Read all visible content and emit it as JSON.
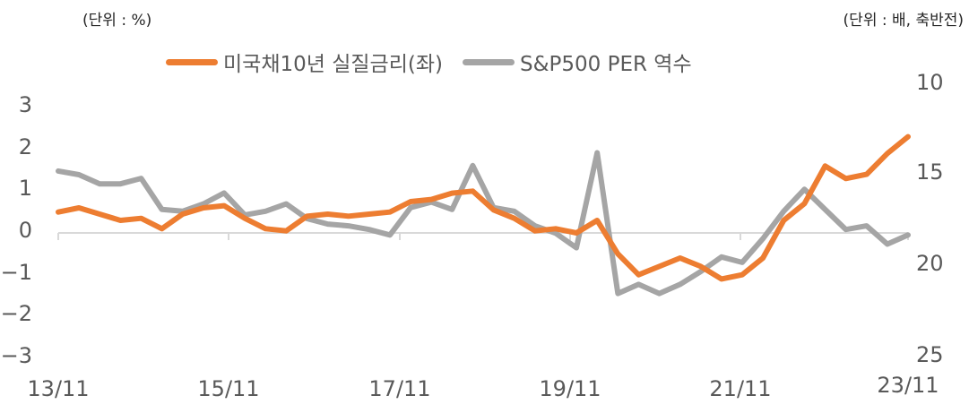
{
  "chart_data": {
    "type": "line",
    "title": "",
    "unit_left": "(단위 : %)",
    "unit_right": "(단위 : 배, 축반전)",
    "xlabel": "",
    "ylabel_left": "%",
    "ylabel_right": "배 (inverted)",
    "ylim_left": [
      -3,
      3
    ],
    "ylim_right": [
      25,
      10
    ],
    "yticks_left": [
      "3",
      "2",
      "1",
      "0",
      "−1",
      "−2",
      "−3"
    ],
    "yticks_right": [
      "10",
      "15",
      "20",
      "25"
    ],
    "xticks": [
      "13/11",
      "15/11",
      "17/11",
      "19/11",
      "21/11",
      "23/11"
    ],
    "grid": false,
    "legend_position": "top",
    "colors": {
      "real_rate": "#ED7D31",
      "per_inverse": "#A5A5A5",
      "axis": "#D9D9D9"
    },
    "x": [
      "13/11",
      "14/02",
      "14/05",
      "14/08",
      "14/11",
      "15/02",
      "15/05",
      "15/08",
      "15/11",
      "16/02",
      "16/05",
      "16/08",
      "16/11",
      "17/02",
      "17/05",
      "17/08",
      "17/11",
      "18/02",
      "18/05",
      "18/08",
      "18/11",
      "19/02",
      "19/05",
      "19/08",
      "19/11",
      "20/02",
      "20/03",
      "20/05",
      "20/08",
      "20/11",
      "21/02",
      "21/05",
      "21/08",
      "21/11",
      "22/02",
      "22/05",
      "22/08",
      "22/11",
      "23/02",
      "23/05",
      "23/08",
      "23/11"
    ],
    "series": [
      {
        "name": "미국채10년 실질금리(좌)",
        "axis": "left",
        "values": [
          0.5,
          0.6,
          0.45,
          0.3,
          0.35,
          0.1,
          0.45,
          0.6,
          0.65,
          0.35,
          0.1,
          0.05,
          0.4,
          0.45,
          0.4,
          0.45,
          0.5,
          0.75,
          0.8,
          0.95,
          1.0,
          0.55,
          0.35,
          0.05,
          0.1,
          0.0,
          0.3,
          -0.5,
          -1.0,
          -0.8,
          -0.6,
          -0.8,
          -1.1,
          -1.0,
          -0.6,
          0.3,
          0.7,
          1.6,
          1.3,
          1.4,
          1.9,
          2.3
        ]
      },
      {
        "name": "S&P500 PER 역수",
        "axis": "right",
        "values": [
          14.8,
          15.0,
          15.5,
          15.5,
          15.2,
          16.9,
          17.0,
          16.6,
          16.0,
          17.2,
          17.0,
          16.6,
          17.4,
          17.7,
          17.8,
          18.0,
          18.3,
          16.8,
          16.5,
          16.9,
          14.5,
          16.8,
          17.0,
          17.8,
          18.2,
          19.0,
          13.8,
          21.5,
          21.0,
          21.5,
          21.0,
          20.3,
          19.5,
          19.8,
          18.5,
          17.0,
          15.8,
          16.9,
          18.0,
          17.8,
          18.8,
          18.3
        ]
      }
    ]
  },
  "legend": {
    "item1": "미국채10년 실질금리(좌)",
    "item2": "S&P500 PER 역수"
  }
}
